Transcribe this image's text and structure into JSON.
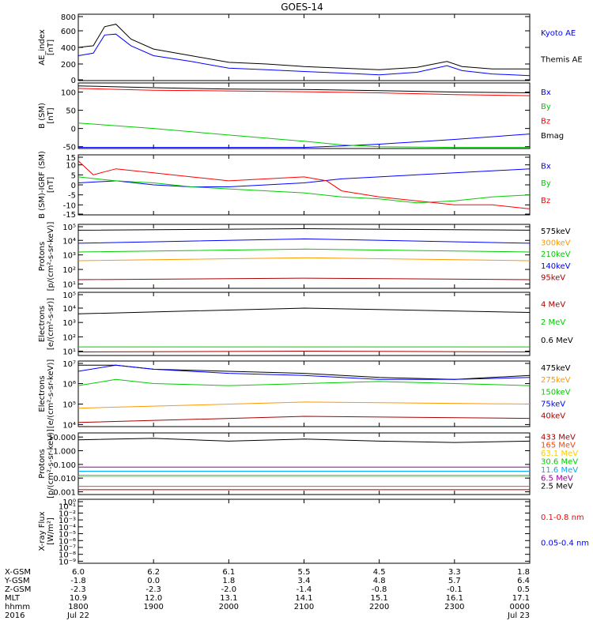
{
  "title": "GOES-14",
  "time_axis": {
    "labels": [
      "1800",
      "1900",
      "2000",
      "2100",
      "2200",
      "2300",
      "0000"
    ],
    "dates": [
      "Jul 22",
      "",
      "",
      "",
      "",
      "",
      "Jul 23"
    ],
    "rows": [
      {
        "name": "X-GSM",
        "values": [
          "6.0",
          "6.2",
          "6.1",
          "5.5",
          "4.5",
          "3.3",
          "1.8"
        ]
      },
      {
        "name": "Y-GSM",
        "values": [
          "-1.8",
          "0.0",
          "1.8",
          "3.4",
          "4.8",
          "5.7",
          "6.4"
        ]
      },
      {
        "name": "Z-GSM",
        "values": [
          "-2.3",
          "-2.3",
          "-2.0",
          "-1.4",
          "-0.8",
          "-0.1",
          "0.5"
        ]
      },
      {
        "name": "MLT",
        "values": [
          "10.9",
          "12.0",
          "13.1",
          "14.1",
          "15.1",
          "16.1",
          "17.1"
        ]
      },
      {
        "name": "hhmm",
        "values": [
          "1800",
          "1900",
          "2000",
          "2100",
          "2200",
          "2300",
          "0000"
        ]
      },
      {
        "name": "2016",
        "values": [
          "Jul 22",
          "",
          "",
          "",
          "",
          "",
          "Jul 23"
        ]
      }
    ]
  },
  "chart_data": [
    {
      "type": "line",
      "ylabel": "AE_index\n[nT]",
      "yticks": [
        "800",
        "600",
        "400",
        "200",
        "0"
      ],
      "ylim": [
        0,
        800
      ],
      "log": false,
      "series": [
        {
          "name": "Kyoto AE",
          "color": "#0000ff",
          "x": [
            18.0,
            18.2,
            18.35,
            18.5,
            18.7,
            19.0,
            19.5,
            20.0,
            20.5,
            21.0,
            21.5,
            22.0,
            22.5,
            22.9,
            23.1,
            23.5,
            24.0
          ],
          "y": [
            300,
            330,
            550,
            560,
            420,
            300,
            230,
            150,
            130,
            110,
            90,
            70,
            100,
            180,
            120,
            80,
            60
          ]
        },
        {
          "name": "Themis AE",
          "color": "#000000",
          "x": [
            18.0,
            18.2,
            18.35,
            18.5,
            18.7,
            19.0,
            19.5,
            20.0,
            20.5,
            21.0,
            21.5,
            22.0,
            22.5,
            22.9,
            23.1,
            23.5,
            24.0
          ],
          "y": [
            400,
            420,
            650,
            680,
            500,
            380,
            300,
            220,
            200,
            170,
            150,
            130,
            160,
            230,
            170,
            140,
            140
          ]
        }
      ]
    },
    {
      "type": "line",
      "ylabel": "B (SM)\n[nT]",
      "yticks": [
        "100",
        "50",
        "0",
        "-50"
      ],
      "ylim": [
        -55,
        125
      ],
      "log": false,
      "series": [
        {
          "name": "Bx",
          "color": "#0000ff",
          "x": [
            18,
            19,
            20,
            21,
            21.5,
            22,
            23,
            24
          ],
          "y": [
            -52,
            -52,
            -52,
            -52,
            -48,
            -43,
            -30,
            -15
          ]
        },
        {
          "name": "By",
          "color": "#00cc00",
          "x": [
            18,
            19,
            20,
            21,
            21.5,
            22,
            23,
            24
          ],
          "y": [
            15,
            0,
            -18,
            -35,
            -45,
            -50,
            -52,
            -52
          ]
        },
        {
          "name": "Bz",
          "color": "#ff0000",
          "x": [
            18,
            19,
            20,
            21,
            22,
            23,
            24
          ],
          "y": [
            110,
            105,
            103,
            101,
            98,
            93,
            90
          ]
        },
        {
          "name": "Bmag",
          "color": "#000000",
          "x": [
            18,
            19,
            20,
            21,
            22,
            23,
            24
          ],
          "y": [
            117,
            112,
            108,
            107,
            104,
            100,
            98
          ]
        }
      ]
    },
    {
      "type": "line",
      "ylabel": "B (SM)-IGRF (SM)\n[nT]",
      "yticks": [
        "15",
        "10",
        "5",
        "0",
        "-5",
        "-10",
        "-15"
      ],
      "ylim": [
        -15,
        15
      ],
      "log": false,
      "series": [
        {
          "name": "Bx",
          "color": "#0000ff",
          "x": [
            18,
            18.5,
            19,
            19.5,
            20,
            20.5,
            21,
            21.5,
            22,
            22.5,
            23,
            23.5,
            24
          ],
          "y": [
            1,
            2,
            0,
            -1,
            -1,
            0,
            1,
            3,
            4,
            5,
            6,
            7,
            8
          ]
        },
        {
          "name": "By",
          "color": "#00cc00",
          "x": [
            18,
            18.5,
            19,
            19.5,
            20,
            20.5,
            21,
            21.5,
            22,
            22.5,
            23,
            23.5,
            24
          ],
          "y": [
            4,
            2,
            1,
            -1,
            -2,
            -3,
            -4,
            -6,
            -7,
            -9,
            -8,
            -6,
            -5
          ]
        },
        {
          "name": "Bz",
          "color": "#ff0000",
          "x": [
            18,
            18.2,
            18.5,
            19,
            19.5,
            20,
            20.5,
            21,
            21.3,
            21.5,
            22,
            22.5,
            23,
            23.5,
            24
          ],
          "y": [
            12,
            5,
            8,
            6,
            4,
            2,
            3,
            4,
            2,
            -3,
            -6,
            -8,
            -10,
            -10,
            -12
          ]
        }
      ]
    },
    {
      "type": "line",
      "ylabel": "Protons\n[p/(cm²-s-sr-keV)]",
      "yticks": [
        "10⁵",
        "10⁴",
        "10³",
        "10²",
        "10¹"
      ],
      "ylim": [
        0.7,
        5.1
      ],
      "log": true,
      "series": [
        {
          "name": "575keV",
          "color": "#000000",
          "x": [
            18,
            21,
            24
          ],
          "y": [
            4.7,
            4.8,
            4.7
          ]
        },
        {
          "name": "300keV",
          "color": "#ff9900",
          "x": [
            18,
            21,
            24
          ],
          "y": [
            2.6,
            2.8,
            2.6
          ]
        },
        {
          "name": "210keV",
          "color": "#00cc00",
          "x": [
            18,
            21,
            24
          ],
          "y": [
            3.2,
            3.4,
            3.2
          ]
        },
        {
          "name": "140keV",
          "color": "#0000ff",
          "x": [
            18,
            21,
            24
          ],
          "y": [
            3.8,
            4.1,
            3.8
          ]
        },
        {
          "name": "95keV",
          "color": "#aa0000",
          "x": [
            18,
            21,
            24
          ],
          "y": [
            1.3,
            1.4,
            1.3
          ]
        }
      ]
    },
    {
      "type": "line",
      "ylabel": "Electrons\n[e/(cm²-s-sr)]",
      "yticks": [
        "10⁵",
        "10⁴",
        "10³",
        "10²",
        "10¹"
      ],
      "ylim": [
        0.7,
        5.1
      ],
      "log": true,
      "series": [
        {
          "name": "4 MeV",
          "color": "#aa0000",
          "x": [
            18,
            21,
            24
          ],
          "y": [
            0.95,
            1.0,
            0.95
          ]
        },
        {
          "name": "2 MeV",
          "color": "#00cc00",
          "x": [
            18,
            21,
            24
          ],
          "y": [
            1.3,
            1.3,
            1.3
          ]
        },
        {
          "name": "0.6 MeV",
          "color": "#000000",
          "x": [
            18,
            21,
            24
          ],
          "y": [
            3.6,
            4.0,
            3.7
          ]
        }
      ]
    },
    {
      "type": "line",
      "ylabel": "Electrons\n[e/(cm²-s-sr-keV)]",
      "yticks": [
        "10⁷",
        "10⁶",
        "10⁵",
        "10⁴"
      ],
      "ylim": [
        3.9,
        7.1
      ],
      "log": true,
      "series": [
        {
          "name": "475keV",
          "color": "#000000",
          "x": [
            18,
            18.5,
            19,
            20,
            21,
            22,
            23,
            24
          ],
          "y": [
            6.9,
            6.9,
            6.7,
            6.6,
            6.5,
            6.3,
            6.2,
            6.4
          ]
        },
        {
          "name": "275keV",
          "color": "#ff9900",
          "x": [
            18,
            21,
            24
          ],
          "y": [
            4.8,
            5.1,
            5.0
          ]
        },
        {
          "name": "150keV",
          "color": "#00cc00",
          "x": [
            18,
            18.5,
            19,
            20,
            21,
            22,
            23,
            24
          ],
          "y": [
            5.9,
            6.2,
            6.0,
            5.9,
            6.0,
            6.1,
            6.0,
            5.9
          ]
        },
        {
          "name": "75keV",
          "color": "#0000ff",
          "x": [
            18,
            18.5,
            19,
            20,
            21,
            22,
            23,
            24
          ],
          "y": [
            6.6,
            6.9,
            6.7,
            6.5,
            6.4,
            6.2,
            6.2,
            6.3
          ]
        },
        {
          "name": "40keV",
          "color": "#aa0000",
          "x": [
            18,
            21,
            24
          ],
          "y": [
            4.1,
            4.4,
            4.3
          ]
        }
      ]
    },
    {
      "type": "line",
      "ylabel": "Protons\n[p/(cm²-s-sr-keV)]",
      "yticks": [
        "10.000",
        "1.000",
        "0.100",
        "0.010",
        "0.001"
      ],
      "ylim": [
        -3.2,
        1.3
      ],
      "log": true,
      "series": [
        {
          "name": "433 MeV",
          "color": "#aa0000",
          "x": [
            18,
            24
          ],
          "y": [
            -2.85,
            -2.85
          ]
        },
        {
          "name": "165 MeV",
          "color": "#ff4400",
          "x": [
            18,
            24
          ],
          "y": [
            -2.6,
            -2.6
          ]
        },
        {
          "name": "63.1 MeV",
          "color": "#ffcc00",
          "x": [
            18,
            24
          ],
          "y": [
            -1.9,
            -1.9
          ]
        },
        {
          "name": "30.6 MeV",
          "color": "#00cc00",
          "x": [
            18,
            24
          ],
          "y": [
            -1.8,
            -1.8
          ]
        },
        {
          "name": "11.6 MeV",
          "color": "#00aaff",
          "x": [
            18,
            24
          ],
          "y": [
            -1.5,
            -1.5
          ]
        },
        {
          "name": "6.5 MeV",
          "color": "#990099",
          "x": [
            18,
            24
          ],
          "y": [
            -1.2,
            -1.2
          ]
        },
        {
          "name": "2.5 MeV",
          "color": "#000000",
          "x": [
            18,
            19,
            20,
            21,
            22,
            23,
            24
          ],
          "y": [
            0.8,
            0.9,
            0.7,
            0.85,
            0.7,
            0.6,
            0.7
          ]
        }
      ]
    },
    {
      "type": "line",
      "ylabel": "X-ray Flux\n[W/m²]",
      "yticks": [
        "10⁰",
        "10⁻¹",
        "10⁻²",
        "10⁻³",
        "10⁻⁴",
        "10⁻⁵",
        "10⁻⁶",
        "10⁻⁷",
        "10⁻⁸",
        "10⁻⁹"
      ],
      "ylim": [
        -9.3,
        0
      ],
      "log": true,
      "series": [
        {
          "name": "0.1-0.8 nm",
          "color": "#ff0000",
          "x": [],
          "y": []
        },
        {
          "name": "0.05-0.4 nm",
          "color": "#0000ff",
          "x": [],
          "y": []
        }
      ]
    }
  ],
  "colors": {
    "axis": "#000000",
    "background": "#ffffff"
  }
}
